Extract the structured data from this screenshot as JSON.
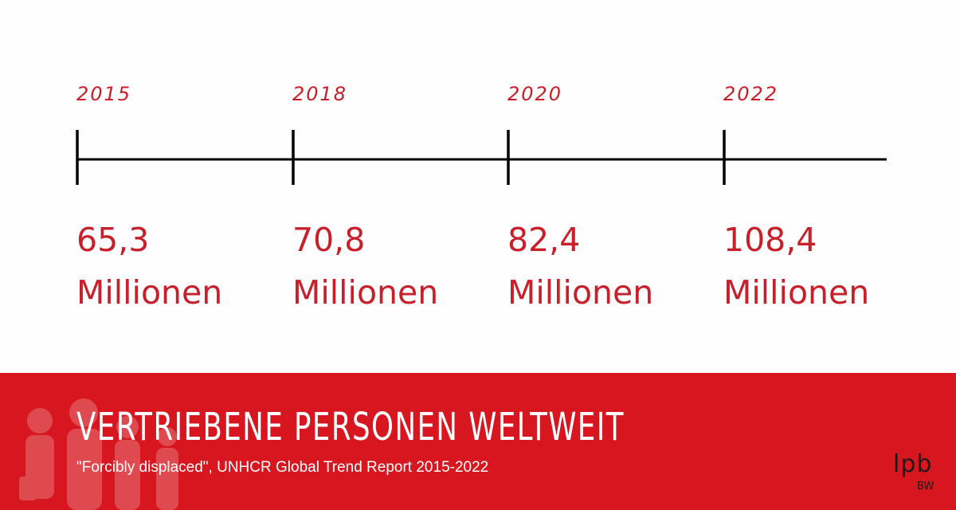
{
  "chart_data": {
    "type": "timeline",
    "unit": "Millionen",
    "points": [
      {
        "year": "2015",
        "value": 65.3,
        "value_label": "65,3"
      },
      {
        "year": "2018",
        "value": 70.8,
        "value_label": "70,8"
      },
      {
        "year": "2020",
        "value": 82.4,
        "value_label": "82,4"
      },
      {
        "year": "2022",
        "value": 108.4,
        "value_label": "108,4"
      }
    ],
    "title": "VERTRIEBENE PERSONEN WELTWEIT",
    "subtitle": "\"Forcibly displaced\", UNHCR Global Trend Report 2015-2022"
  },
  "colors": {
    "accent": "#c8202a",
    "banner": "#d7161f",
    "line": "#000000"
  },
  "logo": {
    "main": "lpb",
    "sub": "BW"
  }
}
